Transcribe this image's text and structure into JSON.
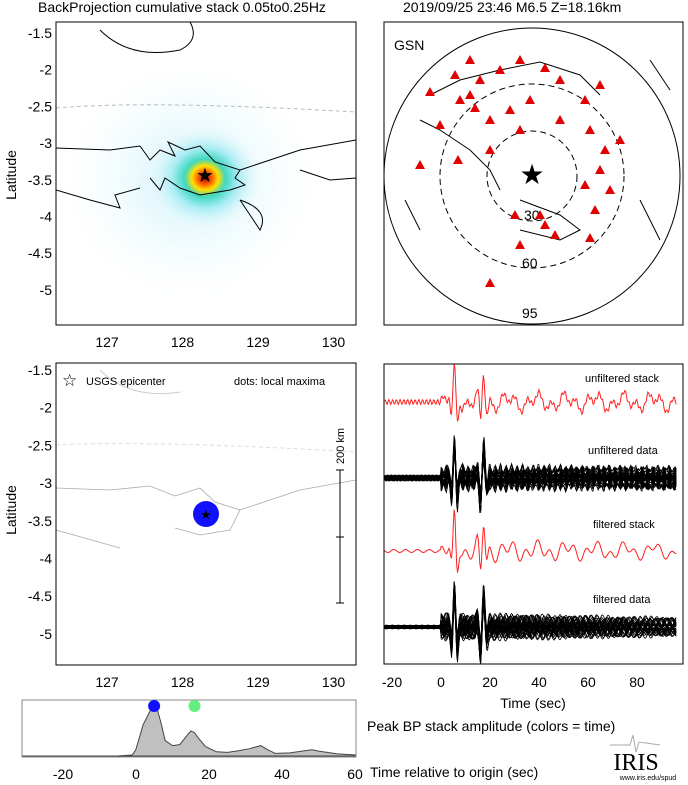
{
  "title_left": "BackProjection cumulative stack 0.05to0.25Hz",
  "title_right": "2019/09/25 23:46  M6.5  Z=18.16km",
  "map": {
    "ylabel": "Latitude",
    "yticks": [
      "-1.5",
      "-2",
      "-2.5",
      "-3",
      "-3.5",
      "-4",
      "-4.5",
      "-5"
    ],
    "xticks": [
      "127",
      "128",
      "129",
      "130"
    ]
  },
  "gsn": {
    "label": "GSN",
    "rings": [
      "30",
      "60",
      "95"
    ]
  },
  "local": {
    "legend_star": "USGS epicenter",
    "legend_dots": "dots: local maxima",
    "scale": "200 km"
  },
  "waves": {
    "labels": [
      "unfiltered stack",
      "unfiltered data",
      "filtered stack",
      "filtered data"
    ],
    "xticks": [
      "-20",
      "0",
      "20",
      "40",
      "60",
      "80"
    ],
    "xlabel": "Time (sec)"
  },
  "colors": {
    "stack": "#ff2020",
    "station": "#e00000",
    "epicenter": "#1020e0",
    "peak1": "#1010ff",
    "peak2": "#60f080"
  },
  "chart_data": {
    "type": "area",
    "title": "Peak BP stack amplitude (colors = time)",
    "xlabel": "Time relative to origin (sec)",
    "xticks": [
      "-20",
      "0",
      "20",
      "40",
      "60"
    ],
    "xlim": [
      -31,
      60
    ],
    "ylim": [
      0,
      1
    ],
    "x": [
      -31,
      -5,
      -1,
      0,
      2,
      4,
      5,
      6,
      7,
      8,
      10,
      12,
      14,
      15,
      16,
      17,
      19,
      22,
      25,
      28,
      31,
      34,
      36,
      38,
      42,
      46,
      48,
      50,
      55,
      60
    ],
    "y": [
      0,
      0,
      0.02,
      0.12,
      0.6,
      0.88,
      0.9,
      0.86,
      0.6,
      0.3,
      0.2,
      0.22,
      0.4,
      0.48,
      0.45,
      0.35,
      0.18,
      0.08,
      0.07,
      0.1,
      0.14,
      0.2,
      0.12,
      0.05,
      0.06,
      0.1,
      0.12,
      0.09,
      0.04,
      0.02
    ],
    "peaks": [
      {
        "time": 5,
        "color": "blue"
      },
      {
        "time": 16,
        "color": "green"
      }
    ]
  },
  "logo": {
    "name": "IRIS",
    "url": "www.iris.edu/spud"
  }
}
